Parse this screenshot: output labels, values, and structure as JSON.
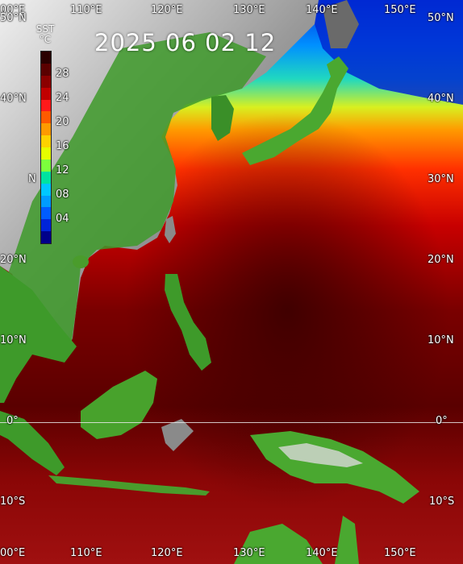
{
  "timestamp": "2025 06 02 12",
  "legend": {
    "header_line1": "SST",
    "header_line2": "°C",
    "ticks": [
      "28",
      "24",
      "20",
      "16",
      "12",
      "08",
      "04"
    ],
    "colors": [
      "#2a0000",
      "#5a0000",
      "#8b0000",
      "#c00000",
      "#ff1a1a",
      "#ff5a00",
      "#ff9a00",
      "#ffd200",
      "#e6ff00",
      "#7cff3c",
      "#00e3a0",
      "#00c8ff",
      "#009cff",
      "#005cff",
      "#0024d8",
      "#00008a"
    ]
  },
  "lon_labels_top": [
    "00°E",
    "110°E",
    "120°E",
    "130°E",
    "140°E",
    "150°E"
  ],
  "lon_labels_bottom": [
    "00°E",
    "110°E",
    "120°E",
    "130°E",
    "140°E",
    "150°E"
  ],
  "lat_labels_left": [
    "50°N",
    "40°N",
    "N",
    "20°N",
    "10°N",
    "0°",
    "10°S"
  ],
  "lat_labels_right": [
    "50°N",
    "40°N",
    "30°N",
    "20°N",
    "10°N",
    "0°",
    "10°S"
  ]
}
